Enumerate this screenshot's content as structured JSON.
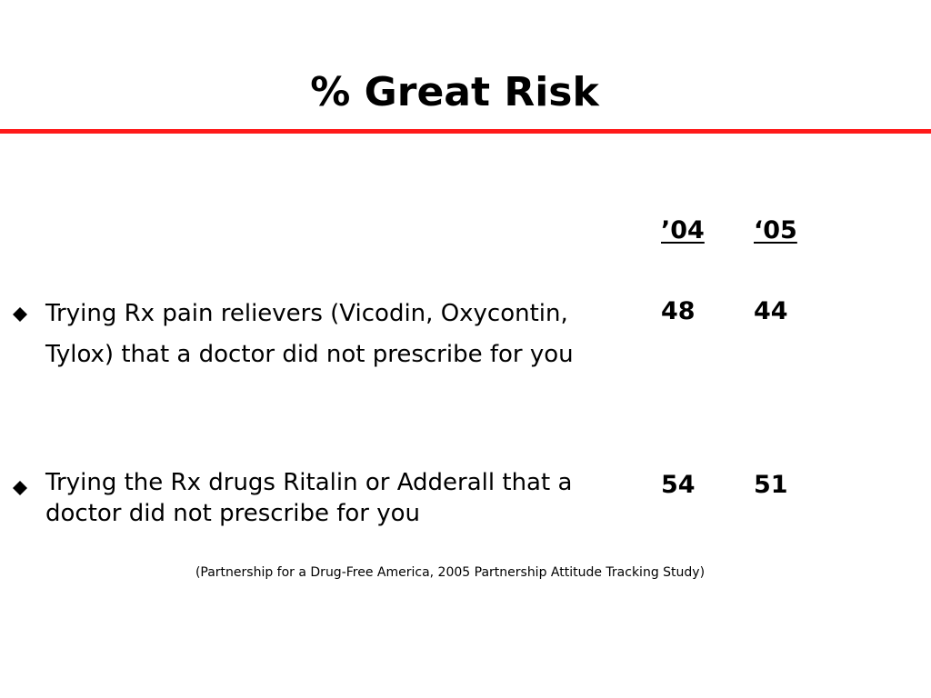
{
  "slide": {
    "title": "% Great Risk",
    "rule_color": "#ff1a1a",
    "columns": [
      "’04",
      "‘05"
    ],
    "items": [
      {
        "bullet_icon": "diamond-bullet-icon",
        "text": "Trying Rx pain relievers (Vicodin, Oxycontin, Tylox) that a doctor did not prescribe for you",
        "values": [
          "48",
          "44"
        ]
      },
      {
        "bullet_icon": "diamond-bullet-icon",
        "text": "Trying the Rx drugs Ritalin or Adderall that a doctor did not prescribe for you",
        "values": [
          "54",
          "51"
        ]
      }
    ],
    "source": "(Partnership for a Drug-Free America, 2005 Partnership Attitude Tracking Study)"
  }
}
